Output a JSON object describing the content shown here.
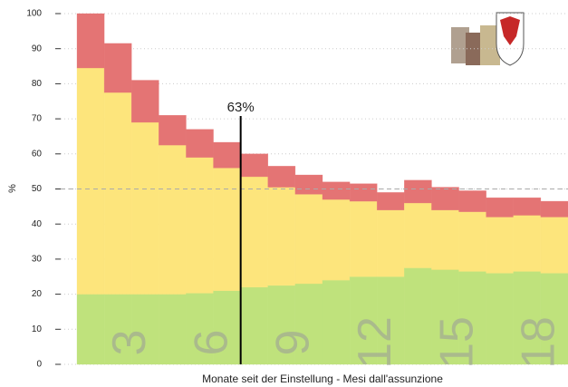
{
  "chart_data": {
    "type": "stacked-bar",
    "categories": [
      null,
      null,
      "3",
      null,
      null,
      "6",
      null,
      null,
      "9",
      null,
      null,
      "12",
      null,
      null,
      "15",
      null,
      null,
      "18"
    ],
    "series": [
      {
        "color": "#bfe27c",
        "values": [
          20,
          20,
          20,
          20,
          20.3,
          21,
          22,
          22.5,
          23,
          24,
          25,
          25,
          27.5,
          27,
          26.5,
          26,
          26.5,
          26
        ]
      },
      {
        "color": "#fde57c",
        "values": [
          64.5,
          57.5,
          49,
          42.5,
          38.7,
          35,
          31.5,
          28,
          25.5,
          23,
          21.5,
          19,
          18.5,
          17,
          17,
          16,
          16,
          16
        ]
      },
      {
        "color": "#e47474",
        "values": [
          15.5,
          14,
          12,
          8.5,
          8,
          7.3,
          6.5,
          6,
          5.5,
          5,
          5,
          5,
          6.5,
          6.5,
          6,
          5.5,
          5,
          4.5
        ]
      }
    ],
    "ylim": [
      0,
      100
    ],
    "yticks": [
      0,
      10,
      20,
      30,
      40,
      50,
      60,
      70,
      80,
      90,
      100
    ],
    "grid": true,
    "reference_line": 50,
    "annotation": "63%",
    "y_label": "%",
    "x_label": "Monate seit der Einstellung - Mesi dall'assunzione"
  }
}
